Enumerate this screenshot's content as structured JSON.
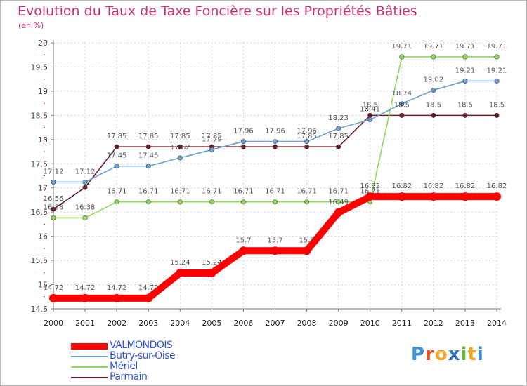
{
  "title": "Evolution du Taux de Taxe Foncière sur les Propriétés Bâties",
  "subtitle": "(en %)",
  "logo": {
    "text": "Proxiti",
    "letters": [
      {
        "ch": "P",
        "color": "#3a8fd8"
      },
      {
        "ch": "r",
        "color": "#e8502a"
      },
      {
        "ch": "o",
        "color": "#f2a623"
      },
      {
        "ch": "x",
        "color": "#2e6fbf"
      },
      {
        "ch": "i",
        "color": "#6ab43e"
      },
      {
        "ch": "t",
        "color": "#f2a623"
      },
      {
        "ch": "i",
        "color": "#3a8fd8"
      }
    ]
  },
  "chart_data": {
    "type": "line",
    "title": "Evolution du Taux de Taxe Foncière sur les Propriétés Bâties",
    "ylabel": "(en %)",
    "xlabel": "",
    "ylim": [
      14.5,
      20
    ],
    "yticks": [
      "14.5",
      "15",
      "15.5",
      "16",
      "16.5",
      "17",
      "17.5",
      "18",
      "18.5",
      "19",
      "19.5",
      "20"
    ],
    "categories": [
      "2000",
      "2001",
      "2002",
      "2003",
      "2004",
      "2005",
      "2006",
      "2007",
      "2008",
      "2009",
      "2010",
      "2011",
      "2012",
      "2013",
      "2014"
    ],
    "grid": true,
    "legend_position": "bottom-left",
    "series": [
      {
        "name": "Parmain",
        "color": "#6b1e2a",
        "values": [
          16.56,
          17.01,
          17.85,
          17.85,
          17.85,
          17.85,
          17.85,
          17.85,
          17.85,
          17.85,
          18.5,
          18.5,
          18.5,
          18.5,
          18.5
        ],
        "labels": [
          "16.56",
          "",
          "17.85",
          "17.85",
          "17.85",
          "17.85",
          "",
          "",
          "17.85",
          "17.85",
          "18.5",
          "18.5",
          "18.5",
          "18.5",
          "18.5"
        ]
      },
      {
        "name": "Mériel",
        "color": "#8fd85a",
        "values": [
          16.38,
          16.38,
          16.71,
          16.71,
          16.71,
          16.71,
          16.71,
          16.71,
          16.71,
          16.71,
          16.71,
          19.71,
          19.71,
          19.71,
          19.71
        ],
        "labels": [
          "16.38",
          "16.38",
          "16.71",
          "16.71",
          "16.71",
          "16.71",
          "16.71",
          "16.71",
          "16.71",
          "16.71",
          "16.71",
          "19.71",
          "19.71",
          "19.71",
          "19.71"
        ]
      },
      {
        "name": "Butry-sur-Oise",
        "color": "#6a9fd0",
        "values": [
          17.12,
          17.12,
          17.45,
          17.45,
          17.62,
          17.79,
          17.96,
          17.96,
          17.96,
          18.23,
          18.41,
          18.74,
          19.02,
          19.21,
          19.21
        ],
        "labels": [
          "17.12",
          "17.12",
          "17.45",
          "17.45",
          "17.62",
          "17.79",
          "17.96",
          "17.96",
          "17.96",
          "18.23",
          "18.41",
          "18.74",
          "19.02",
          "19.21",
          "19.21"
        ]
      },
      {
        "name": "VALMONDOIS",
        "color": "#ff0000",
        "values": [
          14.72,
          14.72,
          14.72,
          14.72,
          15.24,
          15.24,
          15.7,
          15.7,
          15.7,
          16.49,
          16.82,
          16.82,
          16.82,
          16.82,
          16.82
        ],
        "labels": [
          "14.72",
          "14.72",
          "14.72",
          "14.72",
          "15.24",
          "15.24",
          "15.7",
          "15.7",
          "15.7",
          "16.49",
          "16.82",
          "16.82",
          "16.82",
          "16.82",
          "16.82"
        ]
      }
    ],
    "legend": [
      {
        "name": "VALMONDOIS",
        "color": "#ff0000",
        "text_color": "#3355dd"
      },
      {
        "name": "Butry-sur-Oise",
        "color": "#6a9fd0",
        "text_color": "#3355dd"
      },
      {
        "name": "Mériel",
        "color": "#8fd85a",
        "text_color": "#3355dd"
      },
      {
        "name": "Parmain",
        "color": "#6b1e2a",
        "text_color": "#3355dd"
      }
    ]
  }
}
